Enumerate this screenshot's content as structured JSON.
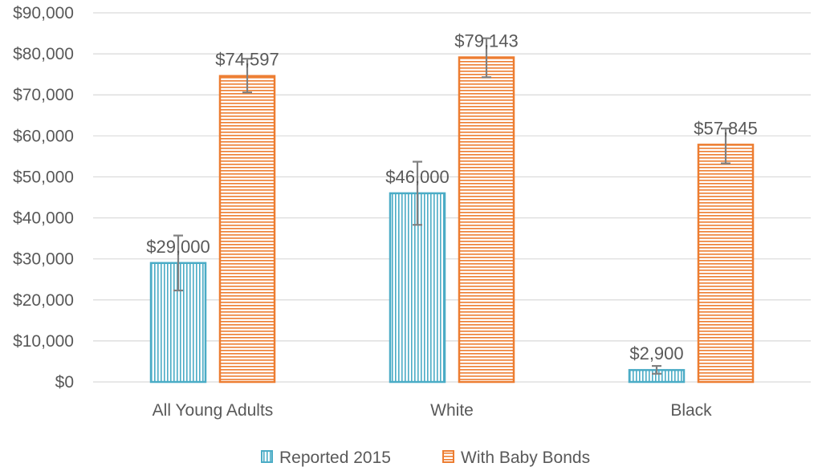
{
  "chart_data": {
    "type": "bar",
    "categories": [
      "All Young Adults",
      "White",
      "Black"
    ],
    "series": [
      {
        "name": "Reported 2015",
        "values": [
          29000,
          46000,
          2900
        ],
        "labels": [
          "$29,000",
          "$46,000",
          "$2,900"
        ],
        "error_low": [
          22300,
          38300,
          2000
        ],
        "error_high": [
          35700,
          53700,
          3900
        ],
        "color": "#4bacc6",
        "pattern": "vertical-stripes"
      },
      {
        "name": "With Baby Bonds",
        "values": [
          74597,
          79143,
          57845
        ],
        "labels": [
          "$74,597",
          "$79,143",
          "$57,845"
        ],
        "error_low": [
          70600,
          74300,
          53300
        ],
        "error_high": [
          78800,
          83800,
          61800
        ],
        "color": "#ed7d31",
        "pattern": "horizontal-stripes"
      }
    ],
    "yticks": [
      "$0",
      "$10,000",
      "$20,000",
      "$30,000",
      "$40,000",
      "$50,000",
      "$60,000",
      "$70,000",
      "$80,000",
      "$90,000"
    ],
    "ylim": [
      0,
      90000
    ],
    "grid": true,
    "legend": "bottom",
    "title": "",
    "xlabel": "",
    "ylabel": ""
  },
  "colors": {
    "grid": "#d9d9d9",
    "text": "#595959",
    "error_bar": "#808080"
  }
}
